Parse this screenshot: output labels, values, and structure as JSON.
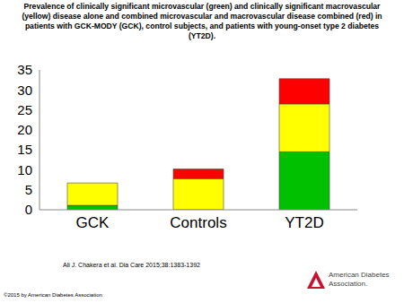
{
  "chart_data": {
    "type": "bar",
    "stacked": true,
    "title": "Prevalence of clinically significant microvascular (green) and clinically significant macrovascular (yellow) disease alone and combined microvascular and macrovascular disease combined (red) in patients with GCK-MODY (GCK), control subjects, and patients with young-onset type 2 diabetes (YT2D).",
    "categories": [
      "GCK",
      "Controls",
      "YT2D"
    ],
    "series": [
      {
        "color": "#00c000",
        "values": [
          1.1,
          0,
          14.5
        ]
      },
      {
        "color": "#ffff00",
        "values": [
          5.6,
          7.8,
          12
        ]
      },
      {
        "color": "#ff0000",
        "values": [
          0,
          2.4,
          6.3
        ]
      }
    ],
    "ylim": [
      0,
      35
    ],
    "yticks": [
      0,
      5,
      10,
      15,
      20,
      25,
      30,
      35
    ],
    "grid": false
  },
  "citation": "Ali J. Chakera et al. Dia Care 2015;38:1383-1392",
  "copyright": "©2015 by American Diabetes Association",
  "logo": "American Diabetes Association."
}
